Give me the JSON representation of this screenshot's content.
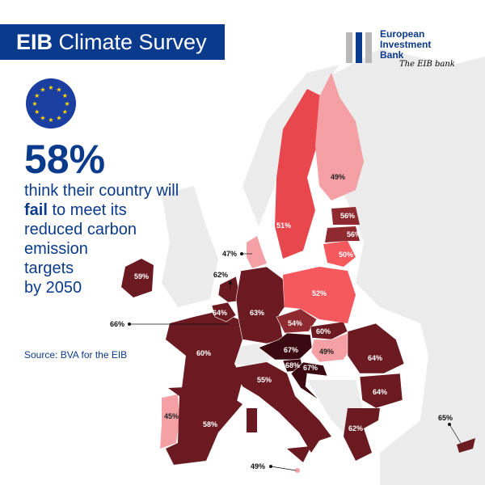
{
  "title": {
    "bold": "EIB",
    "rest": " Climate Survey"
  },
  "logo": {
    "line1": "European",
    "line2": "Investment",
    "line3": "Bank",
    "tagline": "The EIB bank"
  },
  "headline": {
    "value": "58%",
    "line1": "think their country will",
    "fail": "fail",
    "line2": " to meet its",
    "line3": "reduced carbon",
    "line4": "emission",
    "line5": "targets",
    "line6": "by 2050"
  },
  "source": "Source: BVA for the EIB",
  "colors": {
    "brand": "#0a3a8c",
    "darkest": "#3a0a10",
    "dark": "#6a1a20",
    "medium": "#8e2a30",
    "red": "#e8474d",
    "salmon": "#f5595e",
    "pink": "#f4a0a4",
    "other_land": "#ececec"
  },
  "countries": {
    "ireland": "59%",
    "portugal": "45%",
    "spain": "58%",
    "france": "60%",
    "belgium": "64%",
    "luxembourg": "66%",
    "netherlands": "62%",
    "denmark": "47%",
    "germany": "63%",
    "czechia": "54%",
    "austria": "67%",
    "slovenia": "68%",
    "croatia": "67%",
    "slovakia": "60%",
    "hungary": "49%",
    "poland": "52%",
    "lithuania": "50%",
    "latvia": "56%",
    "estonia": "56%",
    "sweden": "51%",
    "finland": "49%",
    "romania": "64%",
    "bulgaria": "64%",
    "greece": "62%",
    "italy": "55%",
    "malta": "49%",
    "cyprus": "65%"
  }
}
